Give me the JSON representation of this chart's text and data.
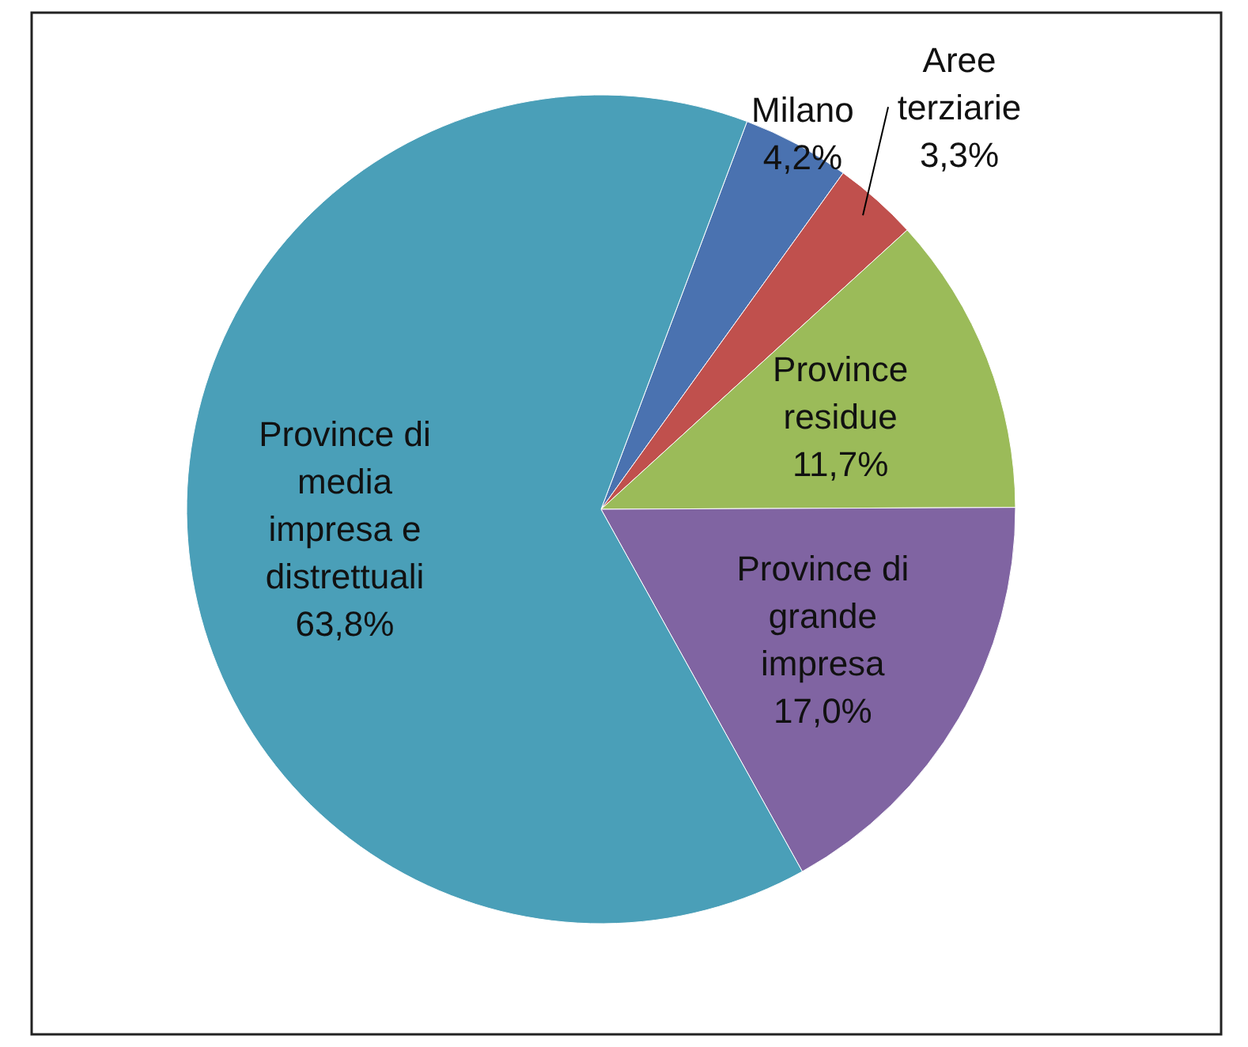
{
  "chart_data": {
    "type": "pie",
    "categories": [
      "Milano",
      "Aree terziarie",
      "Province residue",
      "Province di grande impresa",
      "Province di media impresa e distrettuali"
    ],
    "values": [
      4.2,
      3.3,
      11.7,
      17.0,
      63.8
    ],
    "colors": [
      "#4a72b0",
      "#c0504d",
      "#9bbb59",
      "#8064a2",
      "#4a9fb8"
    ],
    "value_labels": [
      "4,2%",
      "3,3%",
      "11,7%",
      "17,0%",
      "63,8%"
    ]
  }
}
